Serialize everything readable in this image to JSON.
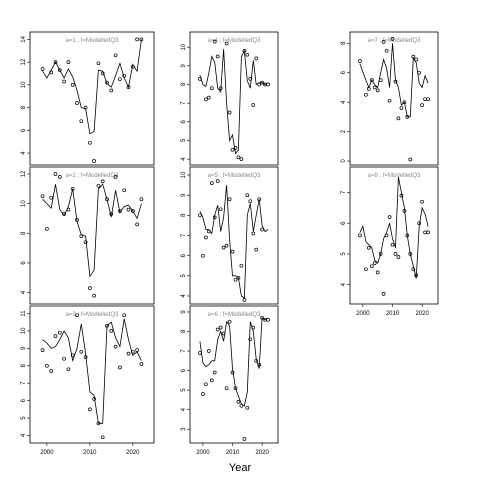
{
  "chart_data": {
    "type": "line",
    "xlabel": "Year",
    "x_ticks": [
      2000,
      2010,
      2020
    ],
    "panels": [
      {
        "title": "a=1 ; f=ModelledQ3",
        "xlim": [
          1997,
          2024
        ],
        "ylim": [
          3.3,
          14.3
        ],
        "y_ticks": [
          4,
          6,
          8,
          10,
          12,
          14
        ],
        "x_ticks_shown": false,
        "fit": {
          "x": [
            1999,
            2000,
            2001,
            2002,
            2003,
            2004,
            2005,
            2006,
            2007,
            2008,
            2009,
            2010,
            2011,
            2012,
            2013,
            2014,
            2015,
            2016,
            2017,
            2018,
            2019,
            2020,
            2021,
            2022
          ],
          "y": [
            11.2,
            10.6,
            11.3,
            12.0,
            11.3,
            10.6,
            11.4,
            10.7,
            9.5,
            8.0,
            7.9,
            5.7,
            5.9,
            11.3,
            11.2,
            10.1,
            9.8,
            10.8,
            11.9,
            10.6,
            9.8,
            11.8,
            11.2,
            14.0
          ]
        },
        "points": {
          "x": [
            1999,
            2001,
            2002,
            2003,
            2004,
            2005,
            2006,
            2007,
            2008,
            2009,
            2010,
            2011,
            2012,
            2013,
            2014,
            2015,
            2016,
            2017,
            2018,
            2019,
            2020,
            2021,
            2022
          ],
          "y": [
            11.4,
            11.1,
            12.0,
            11.3,
            10.3,
            12.0,
            10.0,
            8.4,
            6.8,
            8.0,
            4.9,
            3.3,
            11.9,
            11.0,
            10.2,
            9.5,
            12.6,
            10.5,
            10.8,
            9.8,
            11.6,
            14.0,
            14.0
          ]
        }
      },
      {
        "title": "a=4 ; f=ModelledQ3",
        "xlim": [
          1997,
          2024
        ],
        "ylim": [
          3.9,
          10.6
        ],
        "y_ticks": [
          4,
          5,
          6,
          7,
          8,
          9,
          10
        ],
        "x_ticks_shown": false,
        "fit": {
          "x": [
            1999,
            2000,
            2001,
            2002,
            2003,
            2004,
            2005,
            2006,
            2007,
            2008,
            2009,
            2010,
            2011,
            2012,
            2013,
            2014,
            2015,
            2016,
            2017,
            2018,
            2019,
            2020,
            2021,
            2022
          ],
          "y": [
            8.5,
            8.0,
            7.9,
            8.6,
            9.5,
            9.2,
            7.8,
            7.6,
            9.9,
            7.0,
            5.0,
            5.3,
            4.3,
            4.5,
            9.5,
            9.8,
            8.2,
            7.8,
            9.3,
            8.0,
            8.1,
            8.1,
            8.0,
            8.1
          ]
        },
        "points": {
          "x": [
            1999,
            2001,
            2002,
            2003,
            2004,
            2005,
            2006,
            2008,
            2009,
            2010,
            2011,
            2012,
            2013,
            2014,
            2015,
            2016,
            2017,
            2018,
            2019,
            2020,
            2021,
            2022
          ],
          "y": [
            8.3,
            7.2,
            7.3,
            7.8,
            10.3,
            9.5,
            7.8,
            10.2,
            6.5,
            4.5,
            4.6,
            4.1,
            4.0,
            9.8,
            9.6,
            8.3,
            6.9,
            9.4,
            8.0,
            8.1,
            8.0,
            8.0
          ]
        }
      },
      {
        "title": "a=7 ; f=ModelledQ3",
        "xlim": [
          1997,
          2024
        ],
        "ylim": [
          0,
          8.5
        ],
        "y_ticks": [
          0,
          2,
          4,
          6,
          8
        ],
        "x_ticks_shown": false,
        "fit": {
          "x": [
            1999,
            2001,
            2002,
            2003,
            2004,
            2005,
            2006,
            2007,
            2008,
            2009,
            2010,
            2011,
            2012,
            2013,
            2014,
            2015,
            2016,
            2017,
            2018,
            2019,
            2020,
            2021,
            2022
          ],
          "y": [
            6.6,
            5.5,
            5.0,
            5.5,
            5.2,
            5.0,
            6.0,
            6.9,
            6.3,
            5.0,
            8.0,
            5.5,
            5.0,
            3.8,
            4.0,
            3.0,
            3.0,
            7.0,
            6.7,
            5.3,
            5.0,
            5.8,
            5.3
          ]
        },
        "points": {
          "x": [
            1999,
            2001,
            2002,
            2003,
            2004,
            2005,
            2006,
            2007,
            2008,
            2009,
            2010,
            2011,
            2012,
            2013,
            2014,
            2015,
            2016,
            2017,
            2018,
            2019,
            2020,
            2021,
            2022
          ],
          "y": [
            6.8,
            4.5,
            4.9,
            5.5,
            5.0,
            4.8,
            5.5,
            8.1,
            7.5,
            4.1,
            8.3,
            5.4,
            2.9,
            3.6,
            4.0,
            3.0,
            0.1,
            7.1,
            6.9,
            6.0,
            3.8,
            4.2,
            4.2
          ]
        }
      },
      {
        "title": "a=2 ; f=ModelledQ3",
        "xlim": [
          1997,
          2024
        ],
        "ylim": [
          3.5,
          12.2
        ],
        "y_ticks": [
          4,
          6,
          8,
          10,
          12
        ],
        "x_ticks_shown": false,
        "fit": {
          "x": [
            1999,
            2000,
            2001,
            2002,
            2003,
            2004,
            2005,
            2006,
            2007,
            2008,
            2009,
            2010,
            2011,
            2012,
            2013,
            2014,
            2015,
            2016,
            2017,
            2018,
            2019,
            2020,
            2021,
            2022
          ],
          "y": [
            10.3,
            10.0,
            9.7,
            11.3,
            9.6,
            9.2,
            9.8,
            11.0,
            8.8,
            7.9,
            7.8,
            5.1,
            5.5,
            11.0,
            11.3,
            10.3,
            9.1,
            10.9,
            9.4,
            9.8,
            9.9,
            9.5,
            9.0,
            10.0
          ]
        },
        "points": {
          "x": [
            1999,
            2000,
            2001,
            2002,
            2003,
            2004,
            2005,
            2006,
            2007,
            2008,
            2009,
            2010,
            2011,
            2012,
            2013,
            2014,
            2015,
            2016,
            2017,
            2018,
            2019,
            2020,
            2021,
            2022
          ],
          "y": [
            10.5,
            8.3,
            10.4,
            12.0,
            11.8,
            9.3,
            9.6,
            11.0,
            8.9,
            7.8,
            7.4,
            4.3,
            3.8,
            11.2,
            11.5,
            10.3,
            9.3,
            11.8,
            9.5,
            10.9,
            9.6,
            9.5,
            8.6,
            10.3
          ]
        }
      },
      {
        "title": "a=5 ; f=ModelledQ3",
        "xlim": [
          1997,
          2024
        ],
        "ylim": [
          3.8,
          10.2
        ],
        "y_ticks": [
          4,
          5,
          6,
          7,
          8,
          9,
          10
        ],
        "x_ticks_shown": false,
        "fit": {
          "x": [
            1999,
            2000,
            2001,
            2002,
            2003,
            2004,
            2005,
            2006,
            2007,
            2008,
            2009,
            2010,
            2011,
            2012,
            2013,
            2014,
            2015,
            2016,
            2017,
            2018,
            2019,
            2020,
            2021,
            2022
          ],
          "y": [
            8.2,
            7.9,
            7.3,
            7.3,
            7.1,
            8.0,
            8.5,
            7.2,
            7.9,
            9.5,
            6.8,
            5.0,
            5.0,
            4.9,
            4.0,
            3.9,
            8.0,
            8.6,
            7.2,
            8.0,
            8.8,
            7.5,
            7.2,
            7.3
          ]
        },
        "points": {
          "x": [
            1999,
            2000,
            2001,
            2002,
            2003,
            2004,
            2005,
            2006,
            2007,
            2008,
            2009,
            2010,
            2011,
            2012,
            2013,
            2014,
            2015,
            2016,
            2017,
            2018,
            2019,
            2020
          ],
          "y": [
            8.0,
            6.0,
            6.9,
            7.2,
            9.6,
            7.9,
            9.7,
            8.3,
            6.4,
            6.5,
            8.8,
            6.2,
            4.8,
            4.9,
            5.5,
            3.8,
            9.0,
            8.7,
            7.1,
            6.3,
            8.8,
            7.3
          ]
        }
      },
      {
        "title": "a=8 ; f=ModelledQ3",
        "xlim": [
          1997,
          2024
        ],
        "ylim": [
          3.5,
          7.7
        ],
        "y_ticks": [
          4,
          5,
          6,
          7
        ],
        "x_ticks_shown": true,
        "fit": {
          "x": [
            1999,
            2000,
            2001,
            2002,
            2003,
            2004,
            2005,
            2006,
            2007,
            2008,
            2009,
            2010,
            2011,
            2012,
            2013,
            2014,
            2015,
            2016,
            2017,
            2018,
            2019,
            2020,
            2021,
            2022
          ],
          "y": [
            5.7,
            5.9,
            5.4,
            5.3,
            5.2,
            4.8,
            4.7,
            5.0,
            5.5,
            5.7,
            6.0,
            5.5,
            5.2,
            7.5,
            7.0,
            6.5,
            5.6,
            5.0,
            4.6,
            4.2,
            5.9,
            6.5,
            6.3,
            5.9
          ]
        },
        "points": {
          "x": [
            1999,
            2001,
            2002,
            2003,
            2004,
            2005,
            2006,
            2007,
            2008,
            2009,
            2010,
            2011,
            2012,
            2013,
            2014,
            2015,
            2016,
            2017,
            2018,
            2019,
            2020,
            2021,
            2022
          ],
          "y": [
            5.6,
            4.5,
            5.2,
            4.6,
            4.7,
            4.4,
            5.0,
            3.7,
            5.6,
            6.2,
            5.3,
            5.0,
            4.9,
            6.9,
            6.4,
            5.6,
            5.0,
            4.5,
            4.3,
            6.0,
            6.7,
            5.7,
            5.7
          ]
        }
      },
      {
        "title": "a=3 ; f=ModelledQ3",
        "xlim": [
          1997,
          2024
        ],
        "ylim": [
          3.8,
          11.2
        ],
        "y_ticks": [
          4,
          5,
          6,
          7,
          8,
          9,
          10,
          11
        ],
        "x_ticks_shown": true,
        "fit": {
          "x": [
            1999,
            2000,
            2001,
            2002,
            2003,
            2004,
            2005,
            2006,
            2007,
            2008,
            2009,
            2010,
            2011,
            2012,
            2013,
            2014,
            2015,
            2016,
            2017,
            2018,
            2019,
            2020,
            2021,
            2022
          ],
          "y": [
            9.5,
            9.3,
            9.0,
            9.1,
            9.5,
            10.0,
            9.6,
            8.3,
            9.0,
            10.4,
            8.7,
            6.5,
            6.3,
            4.7,
            4.7,
            10.3,
            10.5,
            9.6,
            9.1,
            10.7,
            9.5,
            8.6,
            8.8,
            8.3
          ]
        },
        "points": {
          "x": [
            1999,
            2000,
            2001,
            2002,
            2003,
            2004,
            2005,
            2006,
            2007,
            2008,
            2009,
            2010,
            2011,
            2012,
            2013,
            2014,
            2015,
            2016,
            2017,
            2018,
            2019,
            2020,
            2021,
            2022
          ],
          "y": [
            8.9,
            8.0,
            7.7,
            9.7,
            9.9,
            8.4,
            7.8,
            8.6,
            10.9,
            8.8,
            8.5,
            5.5,
            6.1,
            4.7,
            3.9,
            10.3,
            10.0,
            9.1,
            7.9,
            10.9,
            8.7,
            8.8,
            8.9,
            8.1
          ]
        }
      },
      {
        "title": "a=6 ; f=ModelledQ3",
        "xlim": [
          1997,
          2024
        ],
        "ylim": [
          2.5,
          9.1
        ],
        "y_ticks": [
          3,
          4,
          5,
          6,
          7,
          8,
          9
        ],
        "x_ticks_shown": true,
        "fit": {
          "x": [
            1999,
            2000,
            2001,
            2002,
            2003,
            2004,
            2005,
            2006,
            2007,
            2008,
            2009,
            2010,
            2011,
            2012,
            2013,
            2014,
            2015,
            2016,
            2017,
            2018,
            2019,
            2020,
            2021,
            2022
          ],
          "y": [
            7.5,
            6.4,
            6.2,
            6.3,
            6.5,
            6.5,
            7.6,
            8.0,
            7.5,
            8.5,
            8.3,
            6.1,
            5.1,
            4.7,
            4.3,
            4.2,
            4.9,
            8.5,
            8.0,
            6.6,
            6.1,
            8.7,
            8.6,
            8.7
          ]
        },
        "points": {
          "x": [
            1999,
            2000,
            2001,
            2002,
            2003,
            2004,
            2005,
            2006,
            2007,
            2008,
            2009,
            2010,
            2011,
            2012,
            2013,
            2014,
            2015,
            2016,
            2017,
            2018,
            2019,
            2020,
            2021,
            2022
          ],
          "y": [
            6.9,
            4.8,
            5.3,
            7.0,
            5.5,
            5.9,
            8.1,
            8.2,
            7.9,
            5.1,
            8.5,
            5.9,
            5.1,
            4.4,
            4.2,
            2.5,
            4.1,
            7.6,
            8.2,
            6.5,
            6.3,
            8.7,
            8.6,
            8.6
          ]
        }
      }
    ]
  }
}
